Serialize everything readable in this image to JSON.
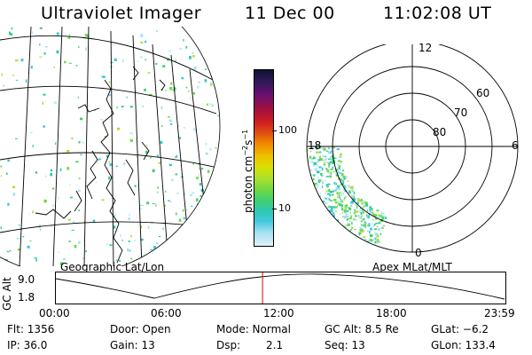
{
  "header": {
    "instrument": "Ultraviolet Imager",
    "date": "11 Dec 00",
    "time": "11:02:08 UT"
  },
  "colorbar": {
    "unit_prefix": "photon cm",
    "unit_exp1": "−2",
    "unit_mid": "s",
    "unit_exp2": "−1",
    "ticks": [
      {
        "label": "100"
      },
      {
        "label": "10"
      }
    ],
    "colors": [
      "#111133",
      "#2a1a55",
      "#6a1070",
      "#a01040",
      "#d02020",
      "#e05010",
      "#f08a00",
      "#f0c000",
      "#d8e000",
      "#a8e030",
      "#70d840",
      "#40d070",
      "#30c8b0",
      "#40c8e0",
      "#a0e0f0",
      "#e0f0f8"
    ]
  },
  "map_left": {
    "caption": "Geographic Lat/Lon"
  },
  "map_right": {
    "caption": "Apex MLat/MLT",
    "mlt_labels": {
      "top": "12",
      "left": "18",
      "right": "6",
      "bottom": "0"
    },
    "lat_labels": [
      "60",
      "70",
      "80"
    ]
  },
  "altplot": {
    "ylabel": "GC Alt",
    "y_ticks": [
      "9.0",
      "1.8"
    ],
    "x_ticks": [
      "00:00",
      "06:00",
      "12:00",
      "18:00",
      "23:59"
    ],
    "current_marker_hour": 11.035,
    "marker_color": "#e00000"
  },
  "status": {
    "flt": "Flt: 1356",
    "ip": "IP: 36.0",
    "door": "Door: Open",
    "gain": "Gain: 13",
    "mode": "Mode: Normal",
    "dsp_label": "Dsp:",
    "dsp_value": "2.1",
    "gcalt": "GC Alt: 8.5 Re",
    "seq": "Seq: 13",
    "glat": "GLat:  −6.2",
    "glon": "GLon: 133.4"
  }
}
